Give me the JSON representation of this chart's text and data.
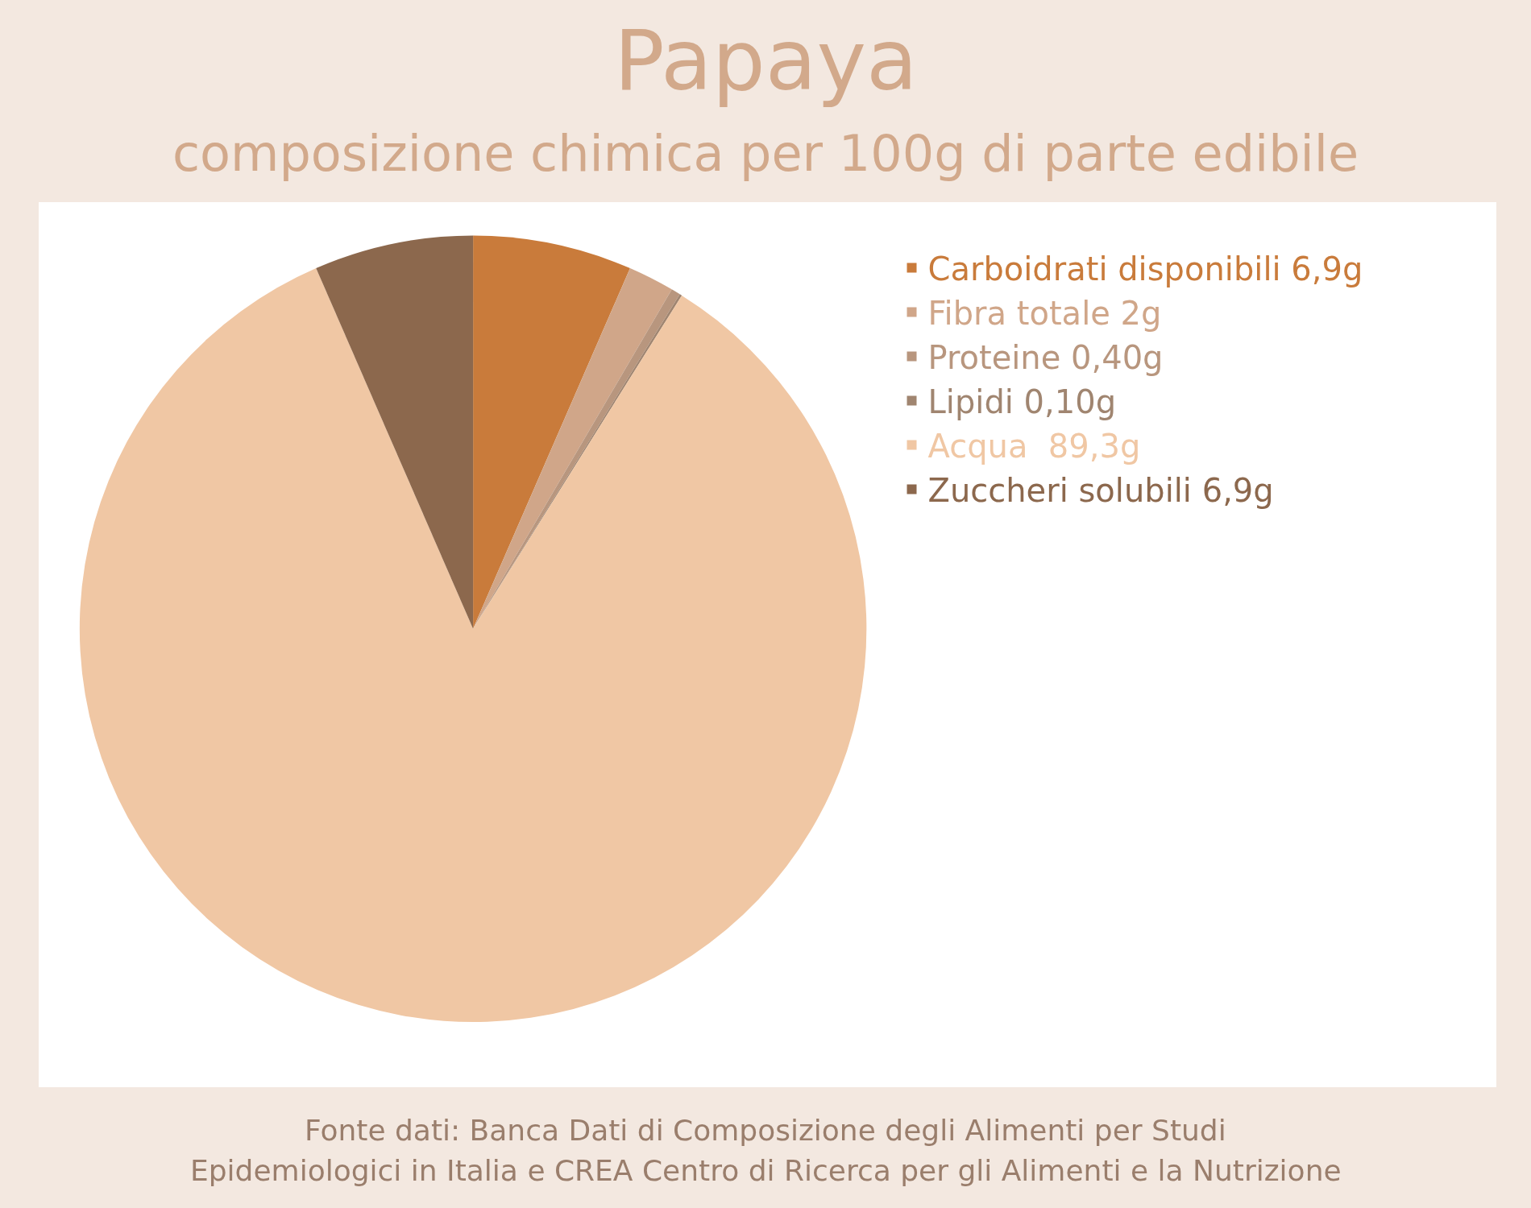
{
  "chart_data": {
    "type": "pie",
    "title": "Papaya",
    "subtitle": "composizione chimica per 100g di parte edibile",
    "categories": [
      "Carboidrati disponibili",
      "Fibra totale",
      "Proteine",
      "Lipidi",
      "Acqua ",
      "Zuccheri solubili"
    ],
    "values": [
      6.9,
      2,
      0.4,
      0.1,
      89.3,
      6.9
    ],
    "value_labels": [
      "6,9g",
      "2g",
      "0,40g",
      "0,10g",
      "89,3g",
      "6,9g"
    ],
    "colors": [
      "#c97b3b",
      "#d0a689",
      "#b8967e",
      "#a08570",
      "#f0c7a4",
      "#8c684d"
    ],
    "legend": "right",
    "annotations": [
      "Fonte dati: Banca Dati di Composizione degli Alimenti per Studi",
      "Epidemiologici in Italia e CREA Centro di Ricerca per gli Alimenti e la Nutrizione"
    ]
  }
}
